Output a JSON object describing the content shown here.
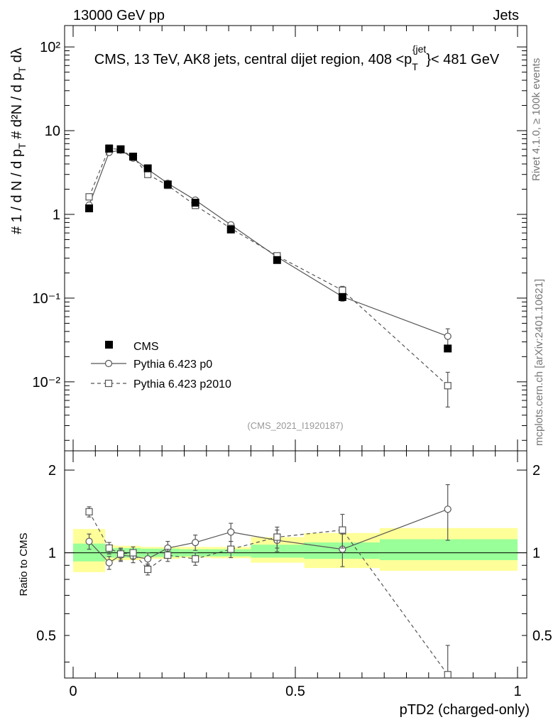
{
  "header": {
    "left": "13000 GeV pp",
    "right": "Jets"
  },
  "side_labels": {
    "rivet": "Rivet 4.1.0, ≥ 100k events",
    "mcplots": "mcplots.cern.ch [arXiv:2401.10621]"
  },
  "chart_data": [
    {
      "type": "scatter",
      "panel": "main",
      "title": "CMS, 13 TeV, AK8 jets, central dijet region, 408 <p_T^{jet}< 481 GeV",
      "xlabel": "pTD2 (charged-only)",
      "ylabel": "1/(dN/dp_T) d²N/(dp_T dλ)",
      "yscale": "log",
      "xlim": [
        0,
        1
      ],
      "ylim": [
        0.0015,
        180
      ],
      "y_ticks": [
        {
          "value": 0.01,
          "label": "10⁻²"
        },
        {
          "value": 0.1,
          "label": "10⁻¹"
        },
        {
          "value": 1,
          "label": "1"
        },
        {
          "value": 10,
          "label": "10"
        },
        {
          "value": 100,
          "label": "10²"
        }
      ],
      "reference": "(CMS_2021_I1920187)",
      "series": [
        {
          "name": "CMS",
          "style": "filled-square",
          "x": [
            0.036,
            0.081,
            0.107,
            0.135,
            0.168,
            0.213,
            0.275,
            0.355,
            0.459,
            0.606,
            0.843
          ],
          "y": [
            1.18,
            6.1,
            6.0,
            4.9,
            3.55,
            2.28,
            1.38,
            0.66,
            0.285,
            0.103,
            0.025
          ],
          "err": [
            0.05,
            0.2,
            0.2,
            0.15,
            0.1,
            0.07,
            0.05,
            0.03,
            0.012,
            0.006,
            0.002
          ]
        },
        {
          "name": "Pythia 6.423 p0",
          "style": "open-circle-solid",
          "x": [
            0.036,
            0.081,
            0.107,
            0.135,
            0.168,
            0.213,
            0.275,
            0.355,
            0.459,
            0.606,
            0.843
          ],
          "y": [
            1.29,
            5.5,
            5.85,
            4.7,
            3.45,
            2.35,
            1.48,
            0.75,
            0.31,
            0.104,
            0.035
          ],
          "err": [
            0.08,
            0.3,
            0.3,
            0.25,
            0.2,
            0.12,
            0.08,
            0.04,
            0.02,
            0.012,
            0.008
          ]
        },
        {
          "name": "Pythia 6.423 p2010",
          "style": "open-square-dashed",
          "x": [
            0.036,
            0.081,
            0.107,
            0.135,
            0.168,
            0.213,
            0.275,
            0.355,
            0.459,
            0.606,
            0.843
          ],
          "y": [
            1.62,
            6.2,
            5.9,
            4.85,
            3.0,
            2.22,
            1.28,
            0.68,
            0.32,
            0.124,
            0.009
          ],
          "err": [
            0.09,
            0.3,
            0.3,
            0.25,
            0.18,
            0.12,
            0.07,
            0.04,
            0.02,
            0.014,
            0.004
          ]
        }
      ]
    },
    {
      "type": "scatter",
      "panel": "ratio",
      "ylabel": "Ratio to CMS",
      "yscale": "log",
      "xlim": [
        0,
        1
      ],
      "ylim": [
        0.35,
        2.35
      ],
      "x_ticks": [
        {
          "value": 0,
          "label": "0"
        },
        {
          "value": 0.5,
          "label": "0.5"
        },
        {
          "value": 1,
          "label": "1"
        }
      ],
      "y_ticks": [
        {
          "value": 0.5,
          "label": "0.5"
        },
        {
          "value": 1,
          "label": "1"
        },
        {
          "value": 2,
          "label": "2"
        }
      ],
      "bands": [
        {
          "x0": 0.0,
          "x1": 0.072,
          "inner": [
            0.93,
            1.08
          ],
          "outer": [
            0.85,
            1.22
          ]
        },
        {
          "x0": 0.072,
          "x1": 0.094,
          "inner": [
            0.96,
            1.04
          ],
          "outer": [
            0.93,
            1.07
          ]
        },
        {
          "x0": 0.094,
          "x1": 0.121,
          "inner": [
            0.96,
            1.04
          ],
          "outer": [
            0.94,
            1.06
          ]
        },
        {
          "x0": 0.121,
          "x1": 0.152,
          "inner": [
            0.96,
            1.04
          ],
          "outer": [
            0.94,
            1.06
          ]
        },
        {
          "x0": 0.152,
          "x1": 0.19,
          "inner": [
            0.965,
            1.035
          ],
          "outer": [
            0.95,
            1.05
          ]
        },
        {
          "x0": 0.19,
          "x1": 0.24,
          "inner": [
            0.965,
            1.035
          ],
          "outer": [
            0.95,
            1.05
          ]
        },
        {
          "x0": 0.24,
          "x1": 0.31,
          "inner": [
            0.97,
            1.03
          ],
          "outer": [
            0.96,
            1.05
          ]
        },
        {
          "x0": 0.31,
          "x1": 0.4,
          "inner": [
            0.97,
            1.03
          ],
          "outer": [
            0.955,
            1.05
          ]
        },
        {
          "x0": 0.4,
          "x1": 0.52,
          "inner": [
            0.96,
            1.07
          ],
          "outer": [
            0.92,
            1.14
          ]
        },
        {
          "x0": 0.52,
          "x1": 0.69,
          "inner": [
            0.95,
            1.09
          ],
          "outer": [
            0.88,
            1.18
          ]
        },
        {
          "x0": 0.69,
          "x1": 1.0,
          "inner": [
            0.94,
            1.12
          ],
          "outer": [
            0.86,
            1.23
          ]
        }
      ],
      "series": [
        {
          "name": "Pythia 6.423 p0",
          "style": "open-circle-solid",
          "x": [
            0.036,
            0.081,
            0.107,
            0.135,
            0.168,
            0.213,
            0.275,
            0.355,
            0.459,
            0.606,
            0.843
          ],
          "y": [
            1.1,
            0.92,
            0.98,
            0.97,
            0.95,
            1.04,
            1.09,
            1.19,
            1.11,
            1.03,
            1.44
          ],
          "err": [
            0.07,
            0.05,
            0.05,
            0.05,
            0.05,
            0.06,
            0.07,
            0.09,
            0.1,
            0.14,
            0.33
          ]
        },
        {
          "name": "Pythia 6.423 p2010",
          "style": "open-square-dashed",
          "x": [
            0.036,
            0.081,
            0.107,
            0.135,
            0.168,
            0.213,
            0.275,
            0.355,
            0.459,
            0.606,
            0.843
          ],
          "y": [
            1.41,
            1.04,
            0.99,
            1.0,
            0.87,
            0.98,
            0.95,
            1.03,
            1.14,
            1.21,
            0.36
          ],
          "err": [
            0.06,
            0.05,
            0.05,
            0.05,
            0.04,
            0.05,
            0.05,
            0.07,
            0.1,
            0.17,
            0.1
          ]
        }
      ]
    }
  ]
}
